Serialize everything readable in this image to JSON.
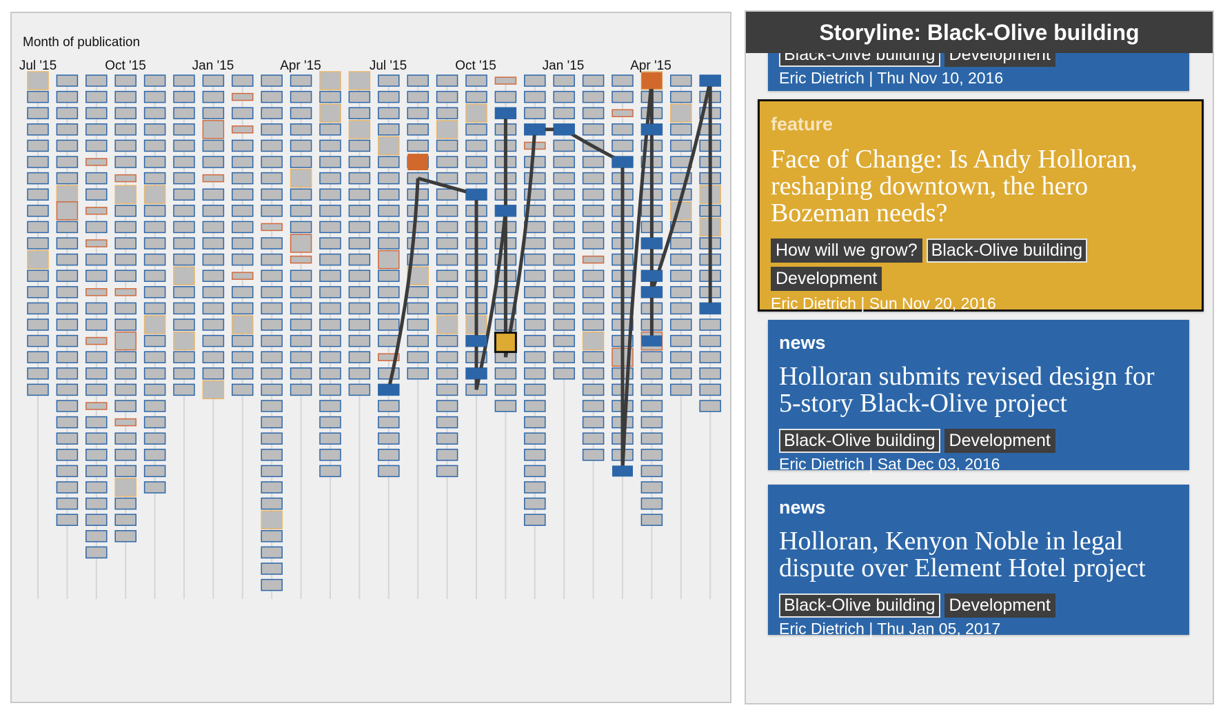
{
  "timeline": {
    "axis_title": "Month of publication",
    "months": [
      "Jul '15",
      "Oct '15",
      "Jan '15",
      "Apr '15",
      "Jul '15",
      "Oct '15",
      "Jan '15",
      "Apr '15"
    ],
    "colors": {
      "background": "#efefef",
      "story_blue": "#2c66a8",
      "default_fill": "#bdbdbd",
      "orange_outline": "#d2693c",
      "yellow_outline": "#e8b66c",
      "selected_fill": "#ddaa32",
      "orange_fill": "#d2692c",
      "link": "#3b3b3b"
    }
  },
  "storyline": {
    "header": "Storyline: Black-Olive building",
    "cards": [
      {
        "kind": "",
        "title": "",
        "tags": [
          "Black-Olive building",
          "Development"
        ],
        "byline": "Eric Dietrich | Thu Nov 10, 2016"
      },
      {
        "kind": "feature",
        "title": "Face of Change: Is Andy Holloran, reshaping downtown, the hero Bozeman needs?",
        "tags": [
          "How will we grow?",
          "Black-Olive building",
          "Development"
        ],
        "byline": "Eric Dietrich | Sun Nov 20, 2016"
      },
      {
        "kind": "news",
        "title": "Holloran submits revised design for 5-story Black-Olive project",
        "tags": [
          "Black-Olive building",
          "Development"
        ],
        "byline": "Eric Dietrich | Sat Dec 03, 2016"
      },
      {
        "kind": "news",
        "title": "Holloran, Kenyon Noble in legal dispute over Element Hotel project",
        "tags": [
          "Black-Olive building",
          "Development"
        ],
        "byline": "Eric Dietrich | Thu Jan 05, 2017"
      }
    ]
  }
}
